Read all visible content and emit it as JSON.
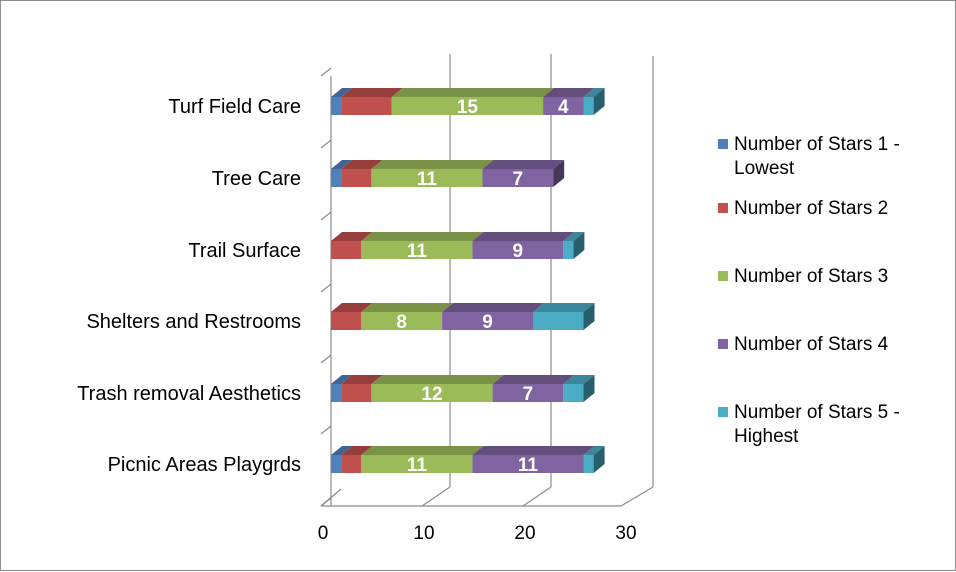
{
  "chart_data": {
    "type": "bar",
    "orientation": "horizontal",
    "stacked": true,
    "three_d": true,
    "categories": [
      "Picnic Areas Playgrds",
      "Trash removal Aesthetics",
      "Shelters and Restrooms",
      "Trail Surface",
      "Tree Care",
      "Turf Field Care"
    ],
    "series": [
      {
        "name": "Number of Stars 1 - Lowest",
        "values": [
          1,
          1,
          0,
          0,
          1,
          1
        ],
        "color": "#4F81BD"
      },
      {
        "name": "Number of Stars 2",
        "values": [
          2,
          3,
          3,
          3,
          3,
          5
        ],
        "color": "#C0504D"
      },
      {
        "name": "Number of Stars 3",
        "values": [
          11,
          12,
          8,
          11,
          11,
          15
        ],
        "color": "#9BBB59"
      },
      {
        "name": "Number of Stars 4",
        "values": [
          11,
          7,
          9,
          9,
          7,
          4
        ],
        "color": "#8064A2"
      },
      {
        "name": "Number of Stars 5 - Highest",
        "values": [
          1,
          2,
          5,
          1,
          0,
          1
        ],
        "color": "#4BACC6"
      }
    ],
    "data_labels_series": [
      "Number of Stars 3",
      "Number of Stars 4"
    ],
    "x_ticks": [
      0,
      10,
      20,
      30
    ],
    "xlim": [
      0,
      30
    ],
    "grid": true,
    "legend_position": "right"
  }
}
